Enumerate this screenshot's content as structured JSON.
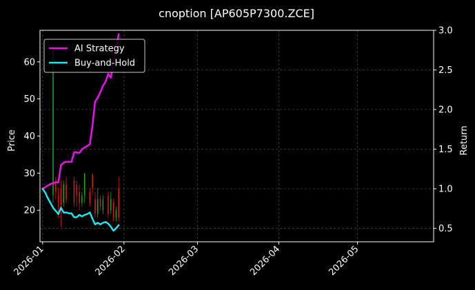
{
  "chart_data": {
    "type": "line",
    "title": "cnoption [AP605P7300.ZCE]",
    "xlabel": "",
    "ylabel_left": "Price",
    "ylabel_right": "Return",
    "x_range": [
      "2025-12-31",
      "2026-05-30"
    ],
    "x_ticks": [
      "2026-01",
      "2026-02",
      "2026-03",
      "2026-04",
      "2026-05"
    ],
    "x_tick_dates": [
      "2026-01-01",
      "2026-02-01",
      "2026-03-01",
      "2026-04-01",
      "2026-05-01"
    ],
    "ylim_left": [
      11.5,
      68.5
    ],
    "yticks_left": [
      20,
      30,
      40,
      50,
      60
    ],
    "ylim_right": [
      0.33,
      3.0
    ],
    "yticks_right": [
      0.5,
      1.0,
      1.5,
      2.0,
      2.5,
      3.0
    ],
    "yticks_right_labels": [
      "0.5",
      "1.0",
      "1.5",
      "2.0",
      "2.5",
      "3.0"
    ],
    "grid": true,
    "legend_position": "top-left",
    "colors": {
      "background": "#000000",
      "axes": "#ffffff",
      "grid": "#444444",
      "up": "#1fa51f",
      "down": "#e01a1a",
      "ai_strategy": "#ee11ee",
      "buy_and_hold": "#22e5f0"
    },
    "series": [
      {
        "name": "AI Strategy",
        "axis": "right",
        "points": [
          [
            "2026-01-01",
            1.0
          ],
          [
            "2026-01-02",
            1.02
          ],
          [
            "2026-01-03",
            1.04
          ],
          [
            "2026-01-04",
            1.06
          ],
          [
            "2026-01-05",
            1.07
          ],
          [
            "2026-01-06",
            1.08
          ],
          [
            "2026-01-07",
            1.08
          ],
          [
            "2026-01-08",
            1.3
          ],
          [
            "2026-01-09",
            1.33
          ],
          [
            "2026-01-10",
            1.34
          ],
          [
            "2026-01-11",
            1.34
          ],
          [
            "2026-01-12",
            1.34
          ],
          [
            "2026-01-13",
            1.46
          ],
          [
            "2026-01-14",
            1.46
          ],
          [
            "2026-01-15",
            1.45
          ],
          [
            "2026-01-16",
            1.5
          ],
          [
            "2026-01-17",
            1.52
          ],
          [
            "2026-01-18",
            1.54
          ],
          [
            "2026-01-19",
            1.56
          ],
          [
            "2026-01-20",
            1.8
          ],
          [
            "2026-01-21",
            2.1
          ],
          [
            "2026-01-22",
            2.15
          ],
          [
            "2026-01-23",
            2.22
          ],
          [
            "2026-01-24",
            2.3
          ],
          [
            "2026-01-25",
            2.35
          ],
          [
            "2026-01-26",
            2.45
          ],
          [
            "2026-01-27",
            2.4
          ],
          [
            "2026-01-28",
            2.6
          ],
          [
            "2026-01-29",
            2.75
          ],
          [
            "2026-01-30",
            2.95
          ]
        ]
      },
      {
        "name": "Buy-and-Hold",
        "axis": "right",
        "points": [
          [
            "2026-01-01",
            1.0
          ],
          [
            "2026-01-02",
            0.95
          ],
          [
            "2026-01-03",
            0.88
          ],
          [
            "2026-01-04",
            0.82
          ],
          [
            "2026-01-05",
            0.76
          ],
          [
            "2026-01-06",
            0.72
          ],
          [
            "2026-01-07",
            0.68
          ],
          [
            "2026-01-08",
            0.76
          ],
          [
            "2026-01-09",
            0.7
          ],
          [
            "2026-01-10",
            0.7
          ],
          [
            "2026-01-11",
            0.69
          ],
          [
            "2026-01-12",
            0.69
          ],
          [
            "2026-01-13",
            0.64
          ],
          [
            "2026-01-14",
            0.64
          ],
          [
            "2026-01-15",
            0.67
          ],
          [
            "2026-01-16",
            0.65
          ],
          [
            "2026-01-17",
            0.67
          ],
          [
            "2026-01-18",
            0.68
          ],
          [
            "2026-01-19",
            0.7
          ],
          [
            "2026-01-20",
            0.62
          ],
          [
            "2026-01-21",
            0.55
          ],
          [
            "2026-01-22",
            0.57
          ],
          [
            "2026-01-23",
            0.55
          ],
          [
            "2026-01-24",
            0.57
          ],
          [
            "2026-01-25",
            0.58
          ],
          [
            "2026-01-26",
            0.56
          ],
          [
            "2026-01-27",
            0.52
          ],
          [
            "2026-01-28",
            0.47
          ],
          [
            "2026-01-29",
            0.5
          ],
          [
            "2026-01-30",
            0.54
          ]
        ]
      }
    ],
    "candles": [
      {
        "date": "2026-01-05",
        "open": 24.0,
        "close": 64.0,
        "low": 22.0,
        "high": 65.0
      },
      {
        "date": "2026-01-06",
        "open": 28.0,
        "close": 25.0,
        "low": 23.0,
        "high": 29.0
      },
      {
        "date": "2026-01-07",
        "open": 24.0,
        "close": 22.0,
        "low": 18.0,
        "high": 26.0
      },
      {
        "date": "2026-01-08",
        "open": 26.0,
        "close": 20.0,
        "low": 15.5,
        "high": 28.0
      },
      {
        "date": "2026-01-09",
        "open": 22.0,
        "close": 27.0,
        "low": 21.0,
        "high": 28.0
      },
      {
        "date": "2026-01-10",
        "open": 27.0,
        "close": 23.0,
        "low": 22.0,
        "high": 29.0
      },
      {
        "date": "2026-01-13",
        "open": 28.0,
        "close": 22.0,
        "low": 21.0,
        "high": 29.0
      },
      {
        "date": "2026-01-14",
        "open": 27.0,
        "close": 24.0,
        "low": 21.0,
        "high": 28.0
      },
      {
        "date": "2026-01-15",
        "open": 25.0,
        "close": 22.0,
        "low": 20.0,
        "high": 27.0
      },
      {
        "date": "2026-01-16",
        "open": 22.0,
        "close": 24.0,
        "low": 21.0,
        "high": 25.0
      },
      {
        "date": "2026-01-17",
        "open": 24.0,
        "close": 30.0,
        "low": 22.0,
        "high": 30.0
      },
      {
        "date": "2026-01-19",
        "open": 25.0,
        "close": 22.0,
        "low": 21.0,
        "high": 26.0
      },
      {
        "date": "2026-01-20",
        "open": 29.5,
        "close": 26.0,
        "low": 24.0,
        "high": 30.0
      },
      {
        "date": "2026-01-21",
        "open": 23.0,
        "close": 19.0,
        "low": 18.0,
        "high": 25.0
      },
      {
        "date": "2026-01-22",
        "open": 19.0,
        "close": 23.0,
        "low": 18.0,
        "high": 26.0
      },
      {
        "date": "2026-01-23",
        "open": 23.0,
        "close": 21.0,
        "low": 20.0,
        "high": 24.0
      },
      {
        "date": "2026-01-24",
        "open": 20.0,
        "close": 23.0,
        "low": 19.0,
        "high": 24.0
      },
      {
        "date": "2026-01-26",
        "open": 24.0,
        "close": 19.0,
        "low": 18.0,
        "high": 25.0
      },
      {
        "date": "2026-01-27",
        "open": 20.0,
        "close": 23.0,
        "low": 19.0,
        "high": 25.0
      },
      {
        "date": "2026-01-28",
        "open": 22.0,
        "close": 18.0,
        "low": 17.0,
        "high": 23.0
      },
      {
        "date": "2026-01-29",
        "open": 18.0,
        "close": 20.0,
        "low": 17.0,
        "high": 21.0
      },
      {
        "date": "2026-01-30",
        "open": 26.0,
        "close": 18.0,
        "low": 17.0,
        "high": 29.0
      }
    ]
  }
}
